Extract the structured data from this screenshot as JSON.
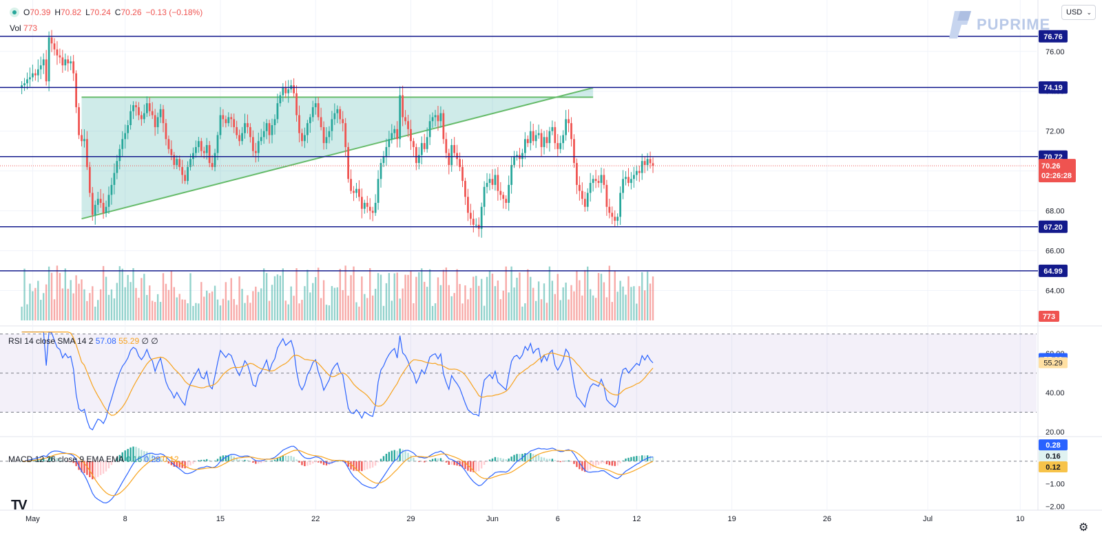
{
  "header": {
    "open_label": "O",
    "open": "70.39",
    "high_label": "H",
    "high": "70.82",
    "low_label": "L",
    "low": "70.24",
    "close_label": "C",
    "close": "70.26",
    "change": "−0.13 (−0.18%)",
    "vol_label": "Vol",
    "vol_value": "773"
  },
  "currency": "USD",
  "brand": "PUPRIME",
  "rsi_legend": {
    "name": "RSI 14 close SMA 14 2",
    "rsi": "57.08",
    "sma": "55.29",
    "extra": "∅ ∅"
  },
  "macd_legend": {
    "name": "MACD 12 26 close 9 EMA EMA",
    "hist": "0.16",
    "macd": "0.28",
    "signal": "0.12"
  },
  "colors": {
    "up": "#26a69a",
    "down": "#ef5350",
    "level": "#131a8c",
    "rsi": "#2962ff",
    "sma": "#f7a21b"
  },
  "chart_data": {
    "type": "candlestick",
    "symbol_price_axis": {
      "ylim": [
        62.5,
        77.2
      ],
      "ticks": [
        "76.00",
        "74.00",
        "72.00",
        "70.00",
        "68.00",
        "66.00",
        "64.00"
      ]
    },
    "x_ticks": [
      "May",
      "8",
      "15",
      "22",
      "29",
      "Jun",
      "6",
      "12",
      "19",
      "26",
      "Jul",
      "10"
    ],
    "x_tick_index": [
      4,
      38,
      73,
      108,
      143,
      173,
      197,
      226,
      261,
      296,
      333,
      367
    ],
    "x_range": [
      -8,
      373
    ],
    "levels": [
      {
        "value": 76.76,
        "label": "76.76"
      },
      {
        "value": 74.19,
        "label": "74.19"
      },
      {
        "value": 70.72,
        "label": "70.72"
      },
      {
        "value": 67.2,
        "label": "67.20"
      },
      {
        "value": 64.99,
        "label": "64.99"
      }
    ],
    "current_price": {
      "value": 70.26,
      "label": "70.26",
      "countdown": "02:26:28"
    },
    "volume_tag": "773",
    "triangle": {
      "top_left": [
        22,
        73.7
      ],
      "top_right": [
        210,
        73.7
      ],
      "apex": [
        210,
        73.9
      ],
      "bottom_left": [
        22,
        67.6
      ]
    },
    "closes": [
      74.3,
      74.4,
      74.6,
      74.7,
      74.9,
      74.8,
      75.1,
      75.3,
      75.6,
      74.5,
      76.7,
      76.4,
      76.1,
      75.8,
      75.7,
      75.3,
      75.6,
      75.4,
      75.5,
      74.9,
      73.2,
      71.8,
      71.5,
      71.6,
      70.2,
      68.9,
      67.8,
      68.3,
      68.6,
      68.4,
      67.9,
      68.2,
      68.8,
      69.3,
      69.9,
      70.5,
      71.1,
      71.6,
      71.9,
      72.3,
      73.0,
      73.3,
      73.2,
      72.8,
      72.6,
      72.9,
      73.4,
      73.0,
      72.8,
      72.2,
      72.7,
      73.1,
      72.4,
      71.6,
      71.1,
      70.8,
      70.3,
      70.6,
      70.2,
      69.8,
      69.5,
      70.2,
      70.6,
      70.9,
      71.2,
      71.5,
      71.0,
      70.9,
      71.3,
      70.4,
      70.2,
      70.9,
      71.8,
      72.8,
      72.6,
      72.4,
      72.7,
      72.6,
      72.2,
      71.8,
      71.5,
      71.9,
      72.4,
      72.2,
      71.7,
      71.0,
      70.9,
      71.5,
      71.7,
      72.0,
      72.4,
      71.8,
      72.3,
      72.6,
      73.4,
      73.8,
      74.2,
      73.9,
      74.1,
      74.3,
      73.9,
      72.8,
      71.9,
      71.5,
      71.8,
      72.4,
      72.7,
      73.2,
      73.4,
      72.7,
      72.2,
      71.4,
      71.7,
      72.0,
      72.6,
      72.9,
      73.1,
      72.6,
      72.4,
      71.2,
      69.6,
      69.0,
      68.9,
      69.1,
      68.7,
      68.1,
      68.4,
      68.2,
      68.0,
      67.9,
      68.4,
      69.6,
      70.4,
      70.7,
      71.2,
      71.6,
      71.9,
      72.1,
      71.6,
      73.8,
      72.7,
      72.5,
      72.1,
      71.5,
      71.2,
      70.4,
      70.8,
      71.4,
      71.1,
      71.7,
      72.5,
      72.7,
      72.8,
      72.5,
      72.9,
      71.6,
      70.9,
      70.3,
      71.3,
      70.9,
      70.6,
      70.2,
      69.5,
      68.7,
      67.9,
      67.6,
      67.3,
      67.3,
      67.1,
      68.2,
      69.2,
      69.4,
      69.6,
      69.3,
      69.8,
      69.0,
      68.8,
      68.6,
      68.4,
      69.3,
      70.3,
      70.7,
      70.8,
      70.6,
      70.9,
      71.6,
      71.4,
      72.0,
      71.5,
      71.8,
      71.9,
      71.2,
      71.7,
      71.4,
      72.0,
      72.2,
      71.4,
      71.1,
      71.4,
      71.8,
      72.6,
      72.4,
      71.6,
      70.4,
      69.3,
      69.0,
      68.6,
      68.2,
      68.9,
      69.4,
      69.6,
      69.5,
      69.4,
      69.8,
      69.3,
      68.2,
      67.9,
      67.7,
      67.5,
      67.7,
      68.9,
      69.6,
      69.7,
      69.4,
      69.6,
      69.8,
      70.0,
      69.9,
      70.5,
      70.3,
      70.6,
      70.39,
      70.26
    ],
    "volume_scale_max": 100,
    "rsi": {
      "ylim": [
        20,
        72
      ],
      "ticks": [
        "20.00",
        "40.00",
        "60.00"
      ],
      "bands": [
        30,
        50,
        70
      ],
      "last": 57.08,
      "sma_last": 55.29
    },
    "macd": {
      "ylim": [
        -2.1,
        0.9
      ],
      "ticks": [
        "0.00",
        "−1.00",
        "−2.00"
      ],
      "last_macd": 0.28,
      "last_hist": 0.16,
      "last_signal": 0.12
    }
  }
}
